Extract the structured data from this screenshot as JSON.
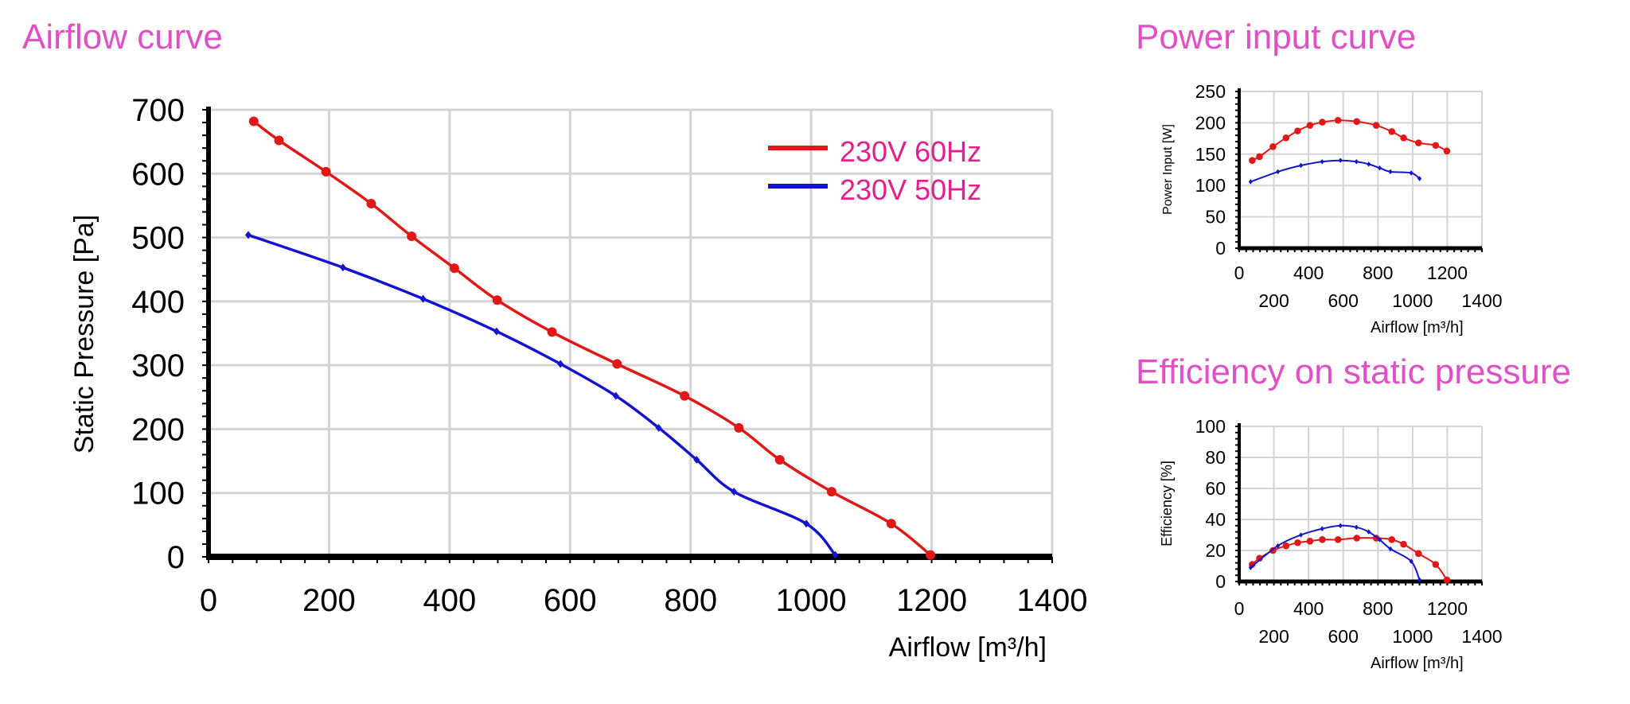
{
  "titles": {
    "airflow": "Airflow curve",
    "power": "Power input curve",
    "efficiency": "Efficiency on static pressure"
  },
  "colors": {
    "title": "#e04fc4",
    "legend_text": "#e0208c",
    "series_60hz": "#e01818",
    "series_50hz": "#1414d0",
    "grid": "#d4d4d4",
    "axis": "#000000"
  },
  "legend": {
    "entries": [
      "230V 60Hz",
      "230V 50Hz"
    ],
    "placement": "top-right"
  },
  "chart_data": [
    {
      "id": "airflow",
      "type": "line",
      "xlabel": "Airflow [m³/h]",
      "ylabel": "Static Pressure [Pa]",
      "xlim": [
        0,
        1400
      ],
      "ylim": [
        0,
        700
      ],
      "xticks": [
        "0",
        "200",
        "400",
        "600",
        "800",
        "1000",
        "1200",
        "1400"
      ],
      "yticks": [
        "0",
        "100",
        "200",
        "300",
        "400",
        "500",
        "600",
        "700"
      ],
      "grid": true,
      "series": [
        {
          "name": "230V 60Hz",
          "marker": "circle",
          "points": [
            [
              75,
              682
            ],
            [
              117,
              652
            ],
            [
              195,
              603
            ],
            [
              270,
              553
            ],
            [
              337,
              502
            ],
            [
              408,
              452
            ],
            [
              479,
              402
            ],
            [
              570,
              352
            ],
            [
              678,
              302
            ],
            [
              790,
              252
            ],
            [
              880,
              202
            ],
            [
              948,
              152
            ],
            [
              1034,
              102
            ],
            [
              1133,
              52
            ],
            [
              1198,
              3
            ]
          ]
        },
        {
          "name": "230V 50Hz",
          "marker": "diamond",
          "points": [
            [
              66,
              504
            ],
            [
              223,
              453
            ],
            [
              356,
              404
            ],
            [
              478,
              353
            ],
            [
              584,
              302
            ],
            [
              676,
              252
            ],
            [
              747,
              202
            ],
            [
              810,
              152
            ],
            [
              872,
              102
            ],
            [
              992,
              52
            ],
            [
              1040,
              3
            ]
          ]
        }
      ]
    },
    {
      "id": "power",
      "type": "line",
      "xlabel": "Airflow [m³/h]",
      "ylabel": "Power Input [W]",
      "xlim": [
        0,
        1400
      ],
      "ylim": [
        0,
        250
      ],
      "xticks": [
        "0",
        "200",
        "400",
        "600",
        "800",
        "1000",
        "1200",
        "1400"
      ],
      "yticks": [
        "0",
        "50",
        "100",
        "150",
        "200",
        "250"
      ],
      "grid": true,
      "series": [
        {
          "name": "230V 60Hz",
          "marker": "circle",
          "points": [
            [
              75,
              140
            ],
            [
              117,
              146
            ],
            [
              195,
              162
            ],
            [
              270,
              176
            ],
            [
              337,
              187
            ],
            [
              408,
              196
            ],
            [
              479,
              201
            ],
            [
              570,
              204
            ],
            [
              678,
              202
            ],
            [
              790,
              196
            ],
            [
              880,
              186
            ],
            [
              948,
              176
            ],
            [
              1034,
              168
            ],
            [
              1133,
              164
            ],
            [
              1198,
              155
            ]
          ]
        },
        {
          "name": "230V 50Hz",
          "marker": "diamond",
          "points": [
            [
              66,
              106
            ],
            [
              223,
              122
            ],
            [
              356,
              132
            ],
            [
              478,
              138
            ],
            [
              584,
              140
            ],
            [
              676,
              138
            ],
            [
              747,
              134
            ],
            [
              810,
              128
            ],
            [
              872,
              122
            ],
            [
              992,
              120
            ],
            [
              1040,
              111
            ]
          ]
        }
      ]
    },
    {
      "id": "efficiency",
      "type": "line",
      "xlabel": "Airflow [m³/h]",
      "ylabel": "Efficiency [%]",
      "xlim": [
        0,
        1400
      ],
      "ylim": [
        0,
        100
      ],
      "xticks": [
        "0",
        "200",
        "400",
        "600",
        "800",
        "1000",
        "1200",
        "1400"
      ],
      "yticks": [
        "0",
        "20",
        "40",
        "60",
        "80",
        "100"
      ],
      "grid": true,
      "series": [
        {
          "name": "230V 60Hz",
          "marker": "circle",
          "points": [
            [
              75,
              11
            ],
            [
              117,
              15
            ],
            [
              195,
              20
            ],
            [
              270,
              23
            ],
            [
              337,
              25
            ],
            [
              408,
              26
            ],
            [
              479,
              27
            ],
            [
              570,
              27
            ],
            [
              678,
              28
            ],
            [
              790,
              28
            ],
            [
              880,
              27
            ],
            [
              948,
              24
            ],
            [
              1034,
              18
            ],
            [
              1133,
              11
            ],
            [
              1198,
              1
            ]
          ]
        },
        {
          "name": "230V 50Hz",
          "marker": "diamond",
          "points": [
            [
              66,
              9
            ],
            [
              223,
              23
            ],
            [
              356,
              30
            ],
            [
              478,
              34
            ],
            [
              584,
              36
            ],
            [
              676,
              35
            ],
            [
              747,
              32
            ],
            [
              810,
              27
            ],
            [
              872,
              21
            ],
            [
              992,
              13
            ],
            [
              1040,
              1
            ]
          ]
        }
      ]
    }
  ]
}
